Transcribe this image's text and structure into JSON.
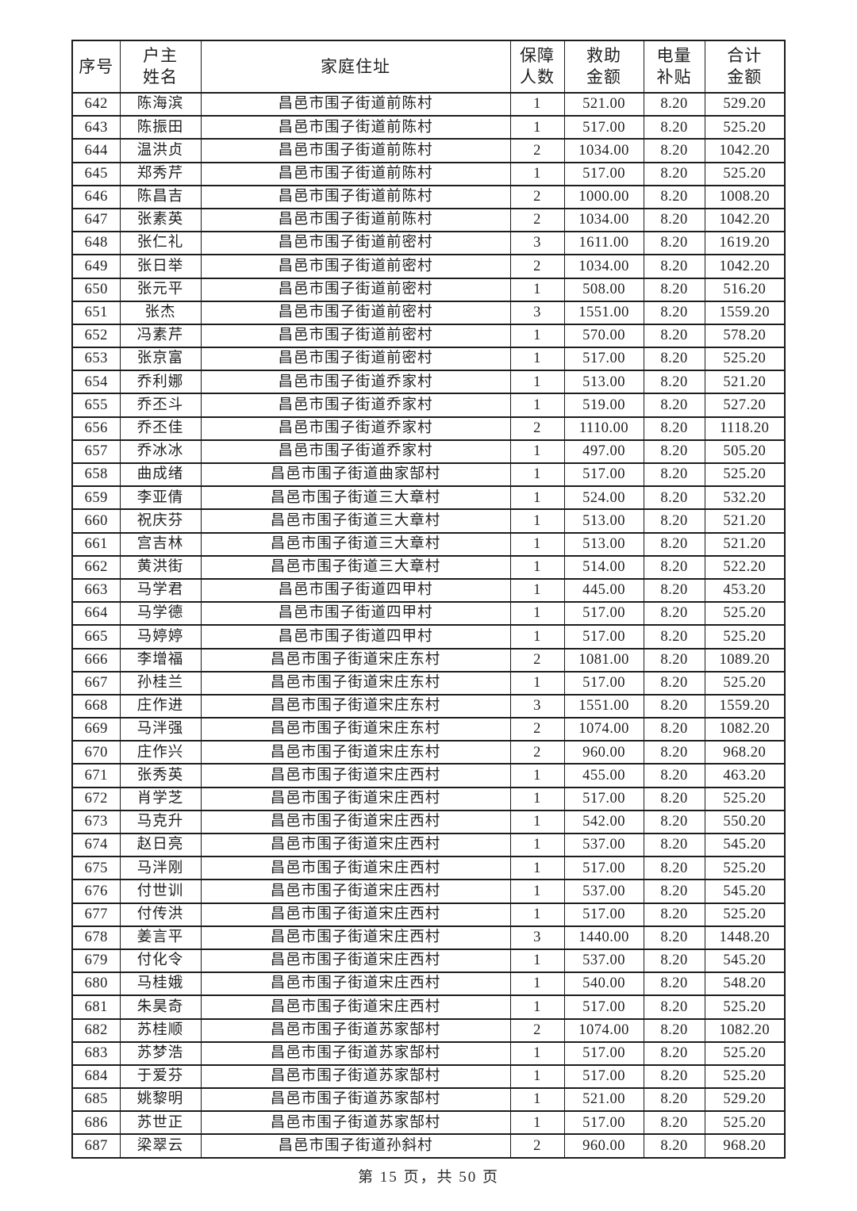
{
  "page": {
    "footer": "第 15 页，共 50 页"
  },
  "table": {
    "columns": [
      {
        "key": "serial",
        "label": "序号"
      },
      {
        "key": "name",
        "label": "户主\n姓名"
      },
      {
        "key": "address",
        "label": "家庭住址"
      },
      {
        "key": "persons",
        "label": "保障\n人数"
      },
      {
        "key": "amount",
        "label": "救助\n金额"
      },
      {
        "key": "subsidy",
        "label": "电量\n补贴"
      },
      {
        "key": "total",
        "label": "合计\n金额"
      }
    ],
    "rows": [
      [
        "642",
        "陈海滨",
        "昌邑市围子街道前陈村",
        "1",
        "521.00",
        "8.20",
        "529.20"
      ],
      [
        "643",
        "陈振田",
        "昌邑市围子街道前陈村",
        "1",
        "517.00",
        "8.20",
        "525.20"
      ],
      [
        "644",
        "温洪贞",
        "昌邑市围子街道前陈村",
        "2",
        "1034.00",
        "8.20",
        "1042.20"
      ],
      [
        "645",
        "郑秀芹",
        "昌邑市围子街道前陈村",
        "1",
        "517.00",
        "8.20",
        "525.20"
      ],
      [
        "646",
        "陈昌吉",
        "昌邑市围子街道前陈村",
        "2",
        "1000.00",
        "8.20",
        "1008.20"
      ],
      [
        "647",
        "张素英",
        "昌邑市围子街道前陈村",
        "2",
        "1034.00",
        "8.20",
        "1042.20"
      ],
      [
        "648",
        "张仁礼",
        "昌邑市围子街道前密村",
        "3",
        "1611.00",
        "8.20",
        "1619.20"
      ],
      [
        "649",
        "张日举",
        "昌邑市围子街道前密村",
        "2",
        "1034.00",
        "8.20",
        "1042.20"
      ],
      [
        "650",
        "张元平",
        "昌邑市围子街道前密村",
        "1",
        "508.00",
        "8.20",
        "516.20"
      ],
      [
        "651",
        "张杰",
        "昌邑市围子街道前密村",
        "3",
        "1551.00",
        "8.20",
        "1559.20"
      ],
      [
        "652",
        "冯素芹",
        "昌邑市围子街道前密村",
        "1",
        "570.00",
        "8.20",
        "578.20"
      ],
      [
        "653",
        "张京富",
        "昌邑市围子街道前密村",
        "1",
        "517.00",
        "8.20",
        "525.20"
      ],
      [
        "654",
        "乔利娜",
        "昌邑市围子街道乔家村",
        "1",
        "513.00",
        "8.20",
        "521.20"
      ],
      [
        "655",
        "乔丕斗",
        "昌邑市围子街道乔家村",
        "1",
        "519.00",
        "8.20",
        "527.20"
      ],
      [
        "656",
        "乔丕佳",
        "昌邑市围子街道乔家村",
        "2",
        "1110.00",
        "8.20",
        "1118.20"
      ],
      [
        "657",
        "乔冰冰",
        "昌邑市围子街道乔家村",
        "1",
        "497.00",
        "8.20",
        "505.20"
      ],
      [
        "658",
        "曲成绪",
        "昌邑市围子街道曲家郜村",
        "1",
        "517.00",
        "8.20",
        "525.20"
      ],
      [
        "659",
        "李亚倩",
        "昌邑市围子街道三大章村",
        "1",
        "524.00",
        "8.20",
        "532.20"
      ],
      [
        "660",
        "祝庆芬",
        "昌邑市围子街道三大章村",
        "1",
        "513.00",
        "8.20",
        "521.20"
      ],
      [
        "661",
        "宫吉林",
        "昌邑市围子街道三大章村",
        "1",
        "513.00",
        "8.20",
        "521.20"
      ],
      [
        "662",
        "黄洪街",
        "昌邑市围子街道三大章村",
        "1",
        "514.00",
        "8.20",
        "522.20"
      ],
      [
        "663",
        "马学君",
        "昌邑市围子街道四甲村",
        "1",
        "445.00",
        "8.20",
        "453.20"
      ],
      [
        "664",
        "马学德",
        "昌邑市围子街道四甲村",
        "1",
        "517.00",
        "8.20",
        "525.20"
      ],
      [
        "665",
        "马婷婷",
        "昌邑市围子街道四甲村",
        "1",
        "517.00",
        "8.20",
        "525.20"
      ],
      [
        "666",
        "李增福",
        "昌邑市围子街道宋庄东村",
        "2",
        "1081.00",
        "8.20",
        "1089.20"
      ],
      [
        "667",
        "孙桂兰",
        "昌邑市围子街道宋庄东村",
        "1",
        "517.00",
        "8.20",
        "525.20"
      ],
      [
        "668",
        "庄作进",
        "昌邑市围子街道宋庄东村",
        "3",
        "1551.00",
        "8.20",
        "1559.20"
      ],
      [
        "669",
        "马泮强",
        "昌邑市围子街道宋庄东村",
        "2",
        "1074.00",
        "8.20",
        "1082.20"
      ],
      [
        "670",
        "庄作兴",
        "昌邑市围子街道宋庄东村",
        "2",
        "960.00",
        "8.20",
        "968.20"
      ],
      [
        "671",
        "张秀英",
        "昌邑市围子街道宋庄西村",
        "1",
        "455.00",
        "8.20",
        "463.20"
      ],
      [
        "672",
        "肖学芝",
        "昌邑市围子街道宋庄西村",
        "1",
        "517.00",
        "8.20",
        "525.20"
      ],
      [
        "673",
        "马克升",
        "昌邑市围子街道宋庄西村",
        "1",
        "542.00",
        "8.20",
        "550.20"
      ],
      [
        "674",
        "赵日亮",
        "昌邑市围子街道宋庄西村",
        "1",
        "537.00",
        "8.20",
        "545.20"
      ],
      [
        "675",
        "马泮刚",
        "昌邑市围子街道宋庄西村",
        "1",
        "517.00",
        "8.20",
        "525.20"
      ],
      [
        "676",
        "付世训",
        "昌邑市围子街道宋庄西村",
        "1",
        "537.00",
        "8.20",
        "545.20"
      ],
      [
        "677",
        "付传洪",
        "昌邑市围子街道宋庄西村",
        "1",
        "517.00",
        "8.20",
        "525.20"
      ],
      [
        "678",
        "姜言平",
        "昌邑市围子街道宋庄西村",
        "3",
        "1440.00",
        "8.20",
        "1448.20"
      ],
      [
        "679",
        "付化令",
        "昌邑市围子街道宋庄西村",
        "1",
        "537.00",
        "8.20",
        "545.20"
      ],
      [
        "680",
        "马桂娥",
        "昌邑市围子街道宋庄西村",
        "1",
        "540.00",
        "8.20",
        "548.20"
      ],
      [
        "681",
        "朱昊奇",
        "昌邑市围子街道宋庄西村",
        "1",
        "517.00",
        "8.20",
        "525.20"
      ],
      [
        "682",
        "苏桂顺",
        "昌邑市围子街道苏家郜村",
        "2",
        "1074.00",
        "8.20",
        "1082.20"
      ],
      [
        "683",
        "苏梦浩",
        "昌邑市围子街道苏家郜村",
        "1",
        "517.00",
        "8.20",
        "525.20"
      ],
      [
        "684",
        "于爱芬",
        "昌邑市围子街道苏家郜村",
        "1",
        "517.00",
        "8.20",
        "525.20"
      ],
      [
        "685",
        "姚黎明",
        "昌邑市围子街道苏家郜村",
        "1",
        "521.00",
        "8.20",
        "529.20"
      ],
      [
        "686",
        "苏世正",
        "昌邑市围子街道苏家郜村",
        "1",
        "517.00",
        "8.20",
        "525.20"
      ],
      [
        "687",
        "梁翠云",
        "昌邑市围子街道孙斜村",
        "2",
        "960.00",
        "8.20",
        "968.20"
      ]
    ]
  }
}
